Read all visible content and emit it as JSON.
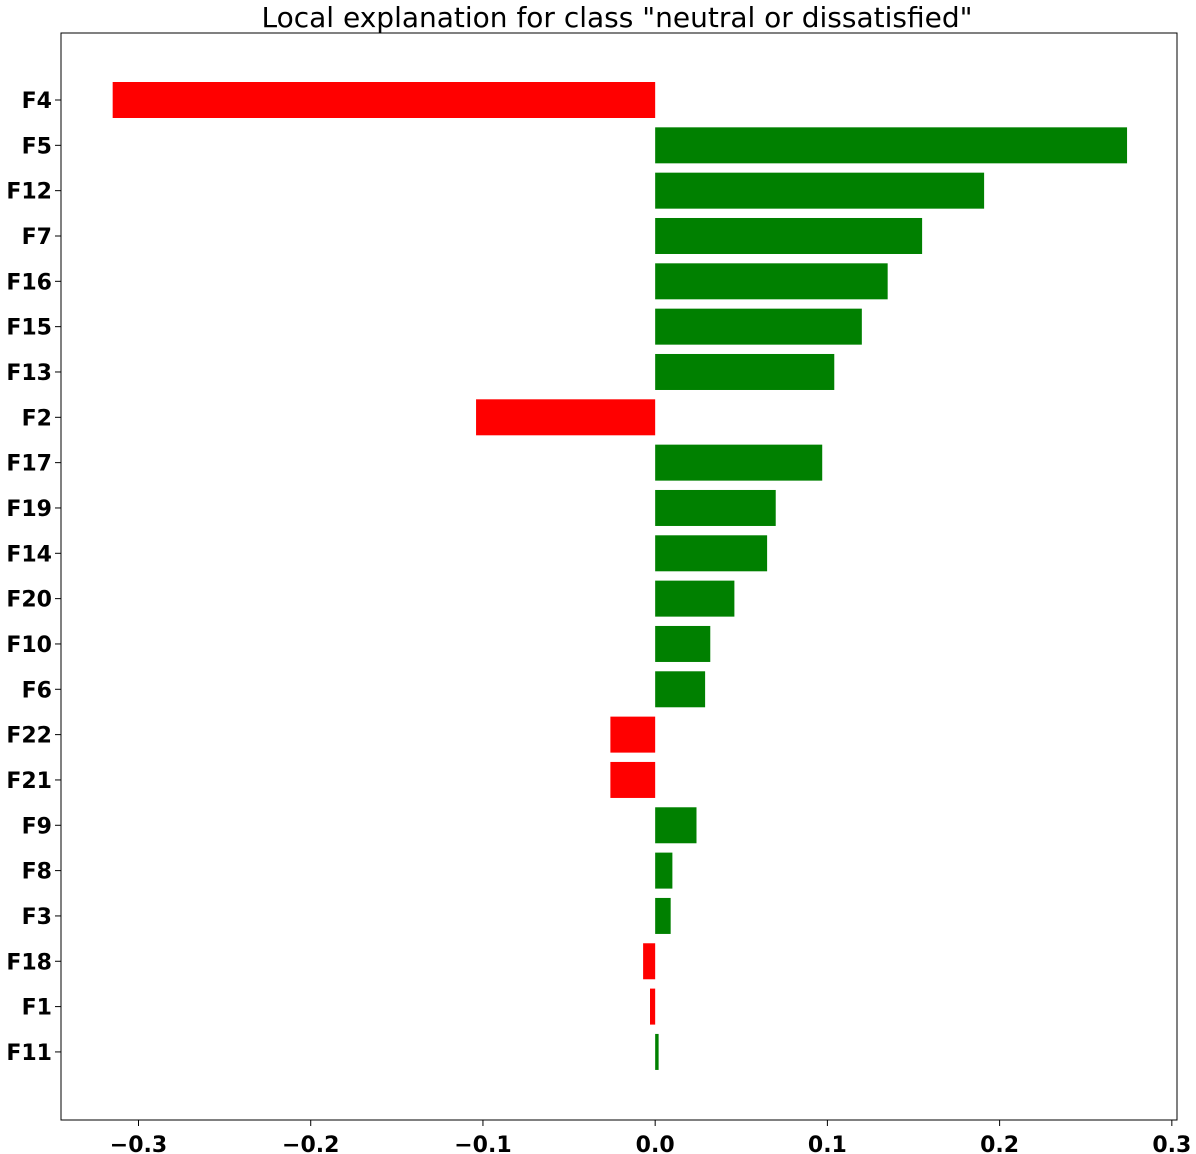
{
  "chart_data": {
    "type": "bar",
    "orientation": "horizontal",
    "title": "Local explanation for class \"neutral or dissatisfied\"",
    "xlabel": "",
    "ylabel": "",
    "categories": [
      "F4",
      "F5",
      "F12",
      "F7",
      "F16",
      "F15",
      "F13",
      "F2",
      "F17",
      "F19",
      "F14",
      "F20",
      "F10",
      "F6",
      "F22",
      "F21",
      "F9",
      "F8",
      "F3",
      "F18",
      "F1",
      "F11"
    ],
    "values": [
      -0.315,
      0.274,
      0.191,
      0.155,
      0.135,
      0.12,
      0.104,
      -0.104,
      0.097,
      0.07,
      0.065,
      0.046,
      0.032,
      0.029,
      -0.026,
      -0.026,
      0.024,
      0.01,
      0.009,
      -0.007,
      -0.003,
      0.002
    ],
    "xlim": [
      -0.345,
      0.303
    ],
    "x_ticks": [
      -0.3,
      -0.2,
      -0.1,
      0.0,
      0.1,
      0.2,
      0.3
    ],
    "x_tick_labels": [
      "−0.3",
      "−0.2",
      "−0.1",
      "0.0",
      "0.1",
      "0.2",
      "0.3"
    ],
    "colors": {
      "positive": "#008000",
      "negative": "#ff0000",
      "axis": "#000000"
    },
    "grid": false,
    "legend": "none"
  }
}
